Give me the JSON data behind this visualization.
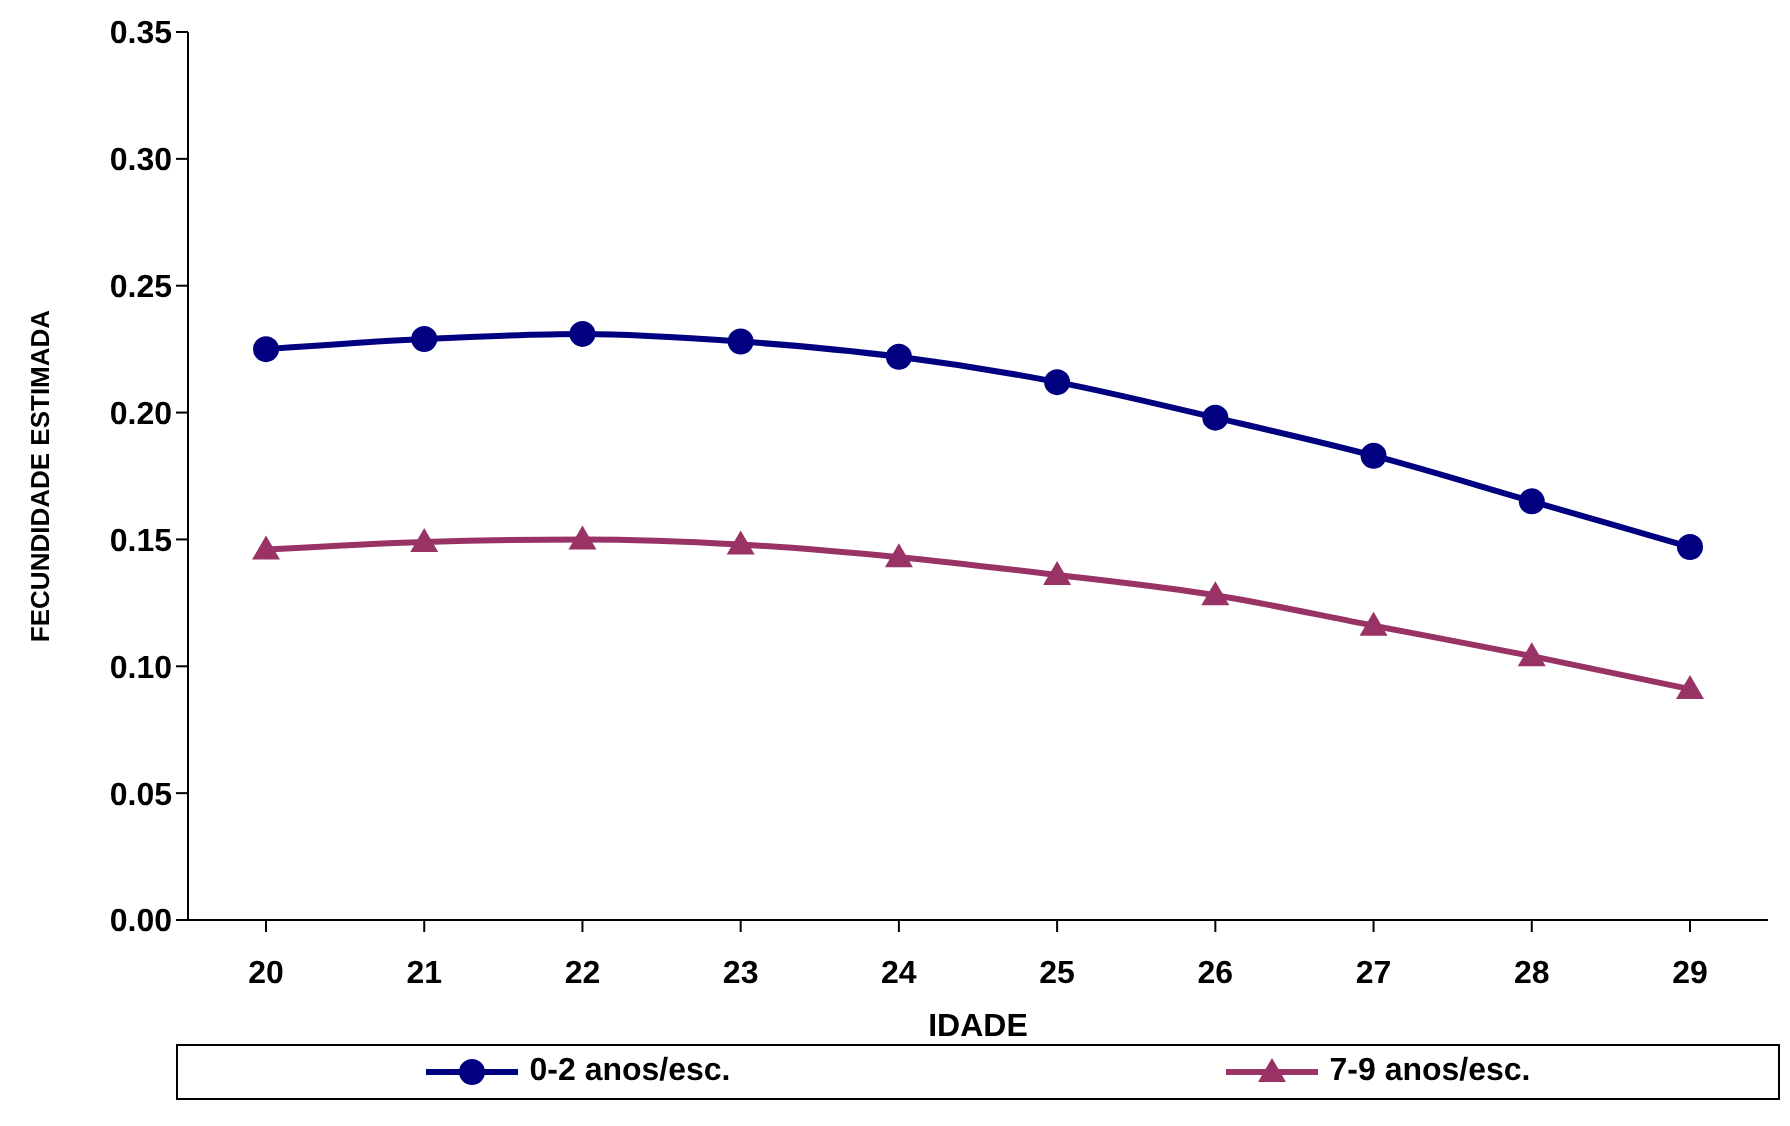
{
  "chart_data": {
    "type": "line",
    "xlabel": "IDADE",
    "ylabel": "FECUNDIDADE ESTIMADA",
    "categories": [
      "20",
      "21",
      "22",
      "23",
      "24",
      "25",
      "26",
      "27",
      "28",
      "29"
    ],
    "series": [
      {
        "name": "0-2 anos/esc.",
        "color": "#000080",
        "marker": "circle",
        "values": [
          0.225,
          0.229,
          0.231,
          0.228,
          0.222,
          0.212,
          0.198,
          0.183,
          0.165,
          0.147
        ]
      },
      {
        "name": "7-9 anos/esc.",
        "color": "#993366",
        "marker": "triangle",
        "values": [
          0.146,
          0.149,
          0.15,
          0.148,
          0.143,
          0.136,
          0.128,
          0.116,
          0.104,
          0.091
        ]
      }
    ],
    "ylim": [
      0,
      0.35
    ],
    "yticks": [
      {
        "value": 0,
        "label": "0.00"
      },
      {
        "value": 0.05,
        "label": "0.05"
      },
      {
        "value": 0.1,
        "label": "0.10"
      },
      {
        "value": 0.15,
        "label": "0.15"
      },
      {
        "value": 0.2,
        "label": "0.20"
      },
      {
        "value": 0.25,
        "label": "0.25"
      },
      {
        "value": 0.3,
        "label": "0.30"
      },
      {
        "value": 0.35,
        "label": "0.35"
      }
    ],
    "grid": false,
    "legend": "bottom"
  }
}
